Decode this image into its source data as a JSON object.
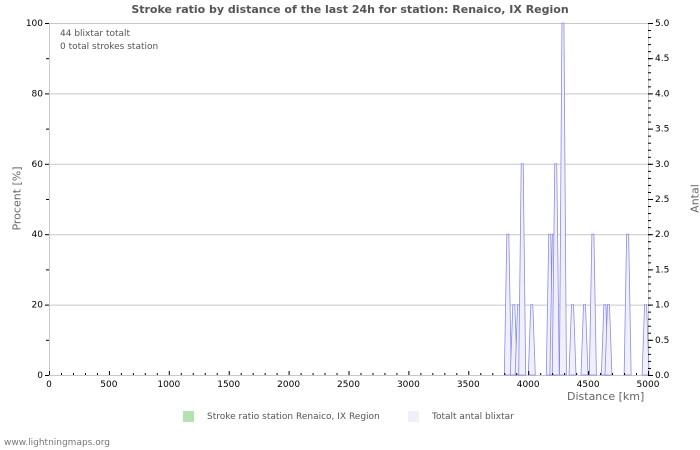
{
  "chart_data": {
    "type": "area",
    "title": "Stroke ratio by distance of the last 24h for station: Renaico, IX Region",
    "xlabel": "Distance   [km]",
    "ylabel_left": "Procent   [%]",
    "ylabel_right": "Antal",
    "xlim": [
      0,
      5000
    ],
    "ylim_left": [
      0,
      100
    ],
    "ylim_right": [
      0,
      5.0
    ],
    "x_ticks": [
      0,
      500,
      1000,
      1500,
      2000,
      2500,
      3000,
      3500,
      4000,
      4500,
      5000
    ],
    "y_left_ticks": [
      0,
      20,
      40,
      60,
      80,
      100
    ],
    "y_right_ticks": [
      "0.0",
      "0.5",
      "1.0",
      "1.5",
      "2.0",
      "2.5",
      "3.0",
      "3.5",
      "4.0",
      "4.5",
      "5.0"
    ],
    "grid": true,
    "legend_position": "bottom",
    "series": [
      {
        "name": "Stroke ratio station Renaico, IX Region",
        "axis": "left",
        "color": "#b5e0b5",
        "x": [],
        "values": []
      },
      {
        "name": "Totalt antal blixtar",
        "axis": "right",
        "color": "#7070e0",
        "fill": "#f0f0fc",
        "x": [
          3830,
          3880,
          3920,
          3950,
          4030,
          4180,
          4210,
          4230,
          4290,
          4370,
          4470,
          4540,
          4640,
          4670,
          4830,
          4980
        ],
        "values": [
          2,
          1,
          1,
          3,
          1,
          2,
          2,
          3,
          5,
          1,
          1,
          2,
          1,
          1,
          2,
          1
        ]
      }
    ],
    "annotations": [
      "44 blixtar totalt",
      "0 total strokes station"
    ]
  },
  "header": {
    "title": "Stroke ratio by distance of the last 24h for station: Renaico, IX Region"
  },
  "info": {
    "line1": "44 blixtar totalt",
    "line2": "0 total strokes station"
  },
  "axes": {
    "x_title": "Distance   [km]",
    "y_left_title": "Procent   [%]",
    "y_right_title": "Antal"
  },
  "legend": {
    "items": [
      {
        "label": "Stroke ratio station Renaico, IX Region",
        "color": "#b5e0b5"
      },
      {
        "label": "Totalt antal blixtar",
        "color": "#f0f0fc"
      }
    ]
  },
  "footer": {
    "text": "www.lightningmaps.org"
  }
}
